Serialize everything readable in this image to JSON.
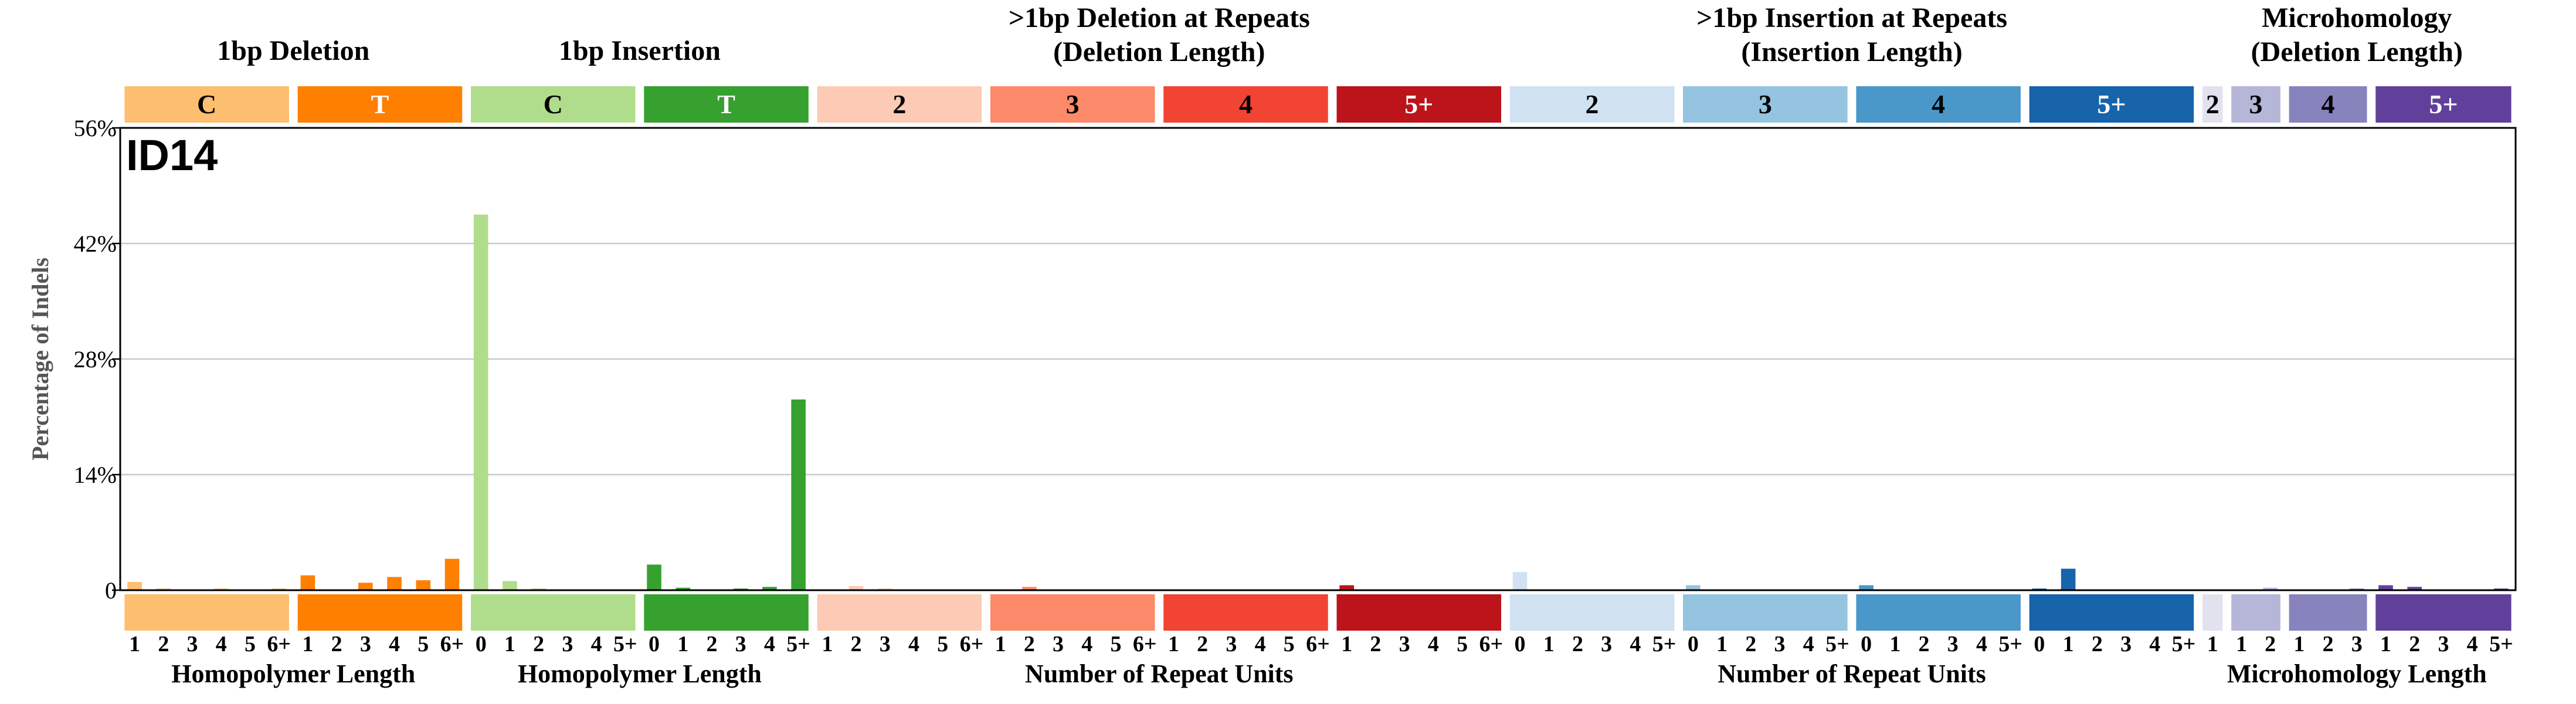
{
  "chart_data": {
    "type": "bar",
    "title": "ID14",
    "ylabel": "Percentage of Indels",
    "ylim": [
      0,
      56
    ],
    "yticks": [
      0,
      14,
      28,
      42,
      56
    ],
    "ytick_labels": [
      "0",
      "14%",
      "28%",
      "42%",
      "56%"
    ],
    "grid": true,
    "groups": [
      {
        "title": [
          "1bp Deletion"
        ],
        "subgroups": [
          {
            "label": "C",
            "color": "#FDBE6F",
            "text_color": "#000000",
            "ticks": [
              "1",
              "2",
              "3",
              "4",
              "5",
              "6+"
            ],
            "values": [
              1.0,
              0.2,
              0.1,
              0.2,
              0.1,
              0.2
            ]
          },
          {
            "label": "T",
            "color": "#FF8001",
            "text_color": "#ffffff",
            "ticks": [
              "1",
              "2",
              "3",
              "4",
              "5",
              "6+"
            ],
            "values": [
              1.8,
              0.1,
              0.9,
              1.6,
              1.2,
              3.8
            ]
          }
        ]
      },
      {
        "title": [
          "1bp Insertion"
        ],
        "subgroups": [
          {
            "label": "C",
            "color": "#B0DD8B",
            "text_color": "#000000",
            "ticks": [
              "0",
              "1",
              "2",
              "3",
              "4",
              "5+"
            ],
            "values": [
              45.5,
              1.1,
              0.2,
              0.1,
              0.1,
              0.1
            ]
          },
          {
            "label": "T",
            "color": "#36A12E",
            "text_color": "#ffffff",
            "ticks": [
              "0",
              "1",
              "2",
              "3",
              "4",
              "5+"
            ],
            "values": [
              3.1,
              0.3,
              0.1,
              0.2,
              0.4,
              23.1
            ]
          }
        ]
      },
      {
        "title": [
          ">1bp Deletion at Repeats",
          "(Deletion Length)"
        ],
        "subgroups": [
          {
            "label": "2",
            "color": "#FDCAB5",
            "text_color": "#000000",
            "ticks": [
              "1",
              "2",
              "3",
              "4",
              "5",
              "6+"
            ],
            "values": [
              0.1,
              0.5,
              0.2,
              0.1,
              0.1,
              0.1
            ]
          },
          {
            "label": "3",
            "color": "#FC8A6A",
            "text_color": "#000000",
            "ticks": [
              "1",
              "2",
              "3",
              "4",
              "5",
              "6+"
            ],
            "values": [
              0.1,
              0.4,
              0.1,
              0.1,
              0.1,
              0.1
            ]
          },
          {
            "label": "4",
            "color": "#F14432",
            "text_color": "#000000",
            "ticks": [
              "1",
              "2",
              "3",
              "4",
              "5",
              "6+"
            ],
            "values": [
              0.1,
              0.1,
              0.1,
              0.1,
              0.1,
              0.1
            ]
          },
          {
            "label": "5+",
            "color": "#BC141A",
            "text_color": "#ffffff",
            "ticks": [
              "1",
              "2",
              "3",
              "4",
              "5",
              "6+"
            ],
            "values": [
              0.6,
              0.1,
              0.1,
              0.1,
              0.1,
              0.1
            ]
          }
        ]
      },
      {
        "title": [
          ">1bp Insertion at Repeats",
          "(Insertion Length)"
        ],
        "subgroups": [
          {
            "label": "2",
            "color": "#D0E1F2",
            "text_color": "#000000",
            "ticks": [
              "0",
              "1",
              "2",
              "3",
              "4",
              "5+"
            ],
            "values": [
              2.2,
              0.1,
              0.1,
              0.1,
              0.1,
              0.1
            ]
          },
          {
            "label": "3",
            "color": "#94C4DF",
            "text_color": "#000000",
            "ticks": [
              "0",
              "1",
              "2",
              "3",
              "4",
              "5+"
            ],
            "values": [
              0.6,
              0.1,
              0.1,
              0.1,
              0.1,
              0.1
            ]
          },
          {
            "label": "4",
            "color": "#4A98C9",
            "text_color": "#000000",
            "ticks": [
              "0",
              "1",
              "2",
              "3",
              "4",
              "5+"
            ],
            "values": [
              0.6,
              0.1,
              0.1,
              0.1,
              0.1,
              0.1
            ]
          },
          {
            "label": "5+",
            "color": "#1764AB",
            "text_color": "#ffffff",
            "ticks": [
              "0",
              "1",
              "2",
              "3",
              "4",
              "5+"
            ],
            "values": [
              0.2,
              2.6,
              0.1,
              0.1,
              0.1,
              0.1
            ]
          }
        ]
      },
      {
        "title": [
          "Microhomology",
          "(Deletion Length)"
        ],
        "subgroups": [
          {
            "label": "2",
            "color": "#E2E2EF",
            "text_color": "#000000",
            "ticks": [
              "1"
            ],
            "values": [
              0.1
            ]
          },
          {
            "label": "3",
            "color": "#B6B6D8",
            "text_color": "#000000",
            "ticks": [
              "1",
              "2"
            ],
            "values": [
              0.1,
              0.3
            ]
          },
          {
            "label": "4",
            "color": "#8683BD",
            "text_color": "#000000",
            "ticks": [
              "1",
              "2",
              "3"
            ],
            "values": [
              0.1,
              0.1,
              0.2
            ]
          },
          {
            "label": "5+",
            "color": "#61409B",
            "text_color": "#ffffff",
            "ticks": [
              "1",
              "2",
              "3",
              "4",
              "5+"
            ],
            "values": [
              0.6,
              0.4,
              0.1,
              0.1,
              0.2
            ]
          }
        ]
      }
    ],
    "bottom_labels": [
      {
        "text": "Homopolymer Length",
        "from": 0,
        "to": 1
      },
      {
        "text": "Homopolymer Length",
        "from": 2,
        "to": 3
      },
      {
        "text": "Number of Repeat Units",
        "from": 4,
        "to": 7
      },
      {
        "text": "Number of Repeat Units",
        "from": 8,
        "to": 11
      },
      {
        "text": "Microhomology Length",
        "from": 12,
        "to": 15
      }
    ]
  }
}
